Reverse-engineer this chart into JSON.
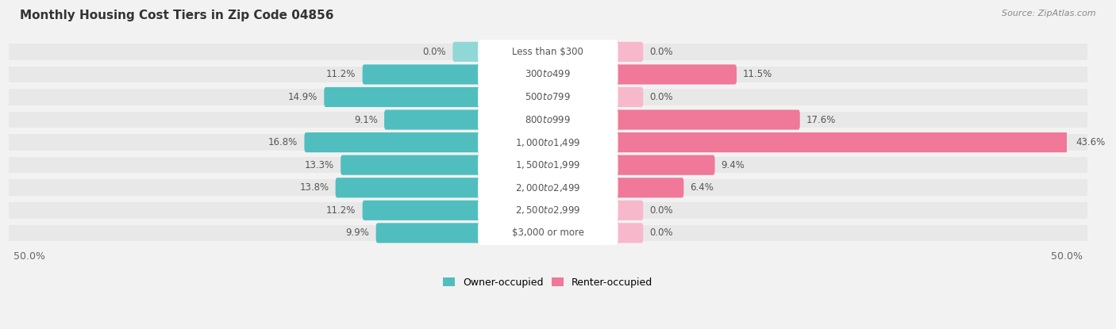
{
  "title": "Monthly Housing Cost Tiers in Zip Code 04856",
  "source": "Source: ZipAtlas.com",
  "categories": [
    "Less than $300",
    "$300 to $499",
    "$500 to $799",
    "$800 to $999",
    "$1,000 to $1,499",
    "$1,500 to $1,999",
    "$2,000 to $2,499",
    "$2,500 to $2,999",
    "$3,000 or more"
  ],
  "owner_values": [
    0.0,
    11.2,
    14.9,
    9.1,
    16.8,
    13.3,
    13.8,
    11.2,
    9.9
  ],
  "renter_values": [
    0.0,
    11.5,
    0.0,
    17.6,
    43.6,
    9.4,
    6.4,
    0.0,
    0.0
  ],
  "owner_color": "#50BEBE",
  "renter_color": "#F07898",
  "owner_color_zero": "#90D8D8",
  "renter_color_zero": "#F8B8CC",
  "background_color": "#f2f2f2",
  "row_bg_color": "#e8e8e8",
  "row_gap_color": "#f2f2f2",
  "pill_color": "#ffffff",
  "axis_limit": 50.0,
  "zero_stub": 2.5,
  "label_fontsize": 8.5,
  "value_fontsize": 8.5,
  "legend_owner": "Owner-occupied",
  "legend_renter": "Renter-occupied"
}
